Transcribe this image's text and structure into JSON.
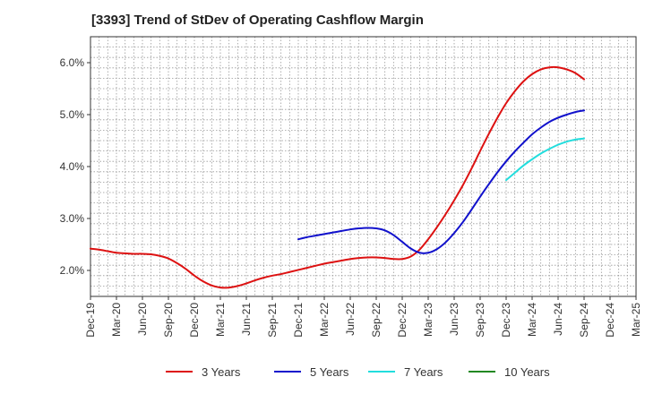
{
  "chart_data": {
    "type": "line",
    "title": "[3393]  Trend of StDev of Operating Cashflow Margin",
    "xlabel": "",
    "ylabel": "",
    "x_ticks": [
      "Dec-19",
      "Mar-20",
      "Jun-20",
      "Sep-20",
      "Dec-20",
      "Mar-21",
      "Jun-21",
      "Sep-21",
      "Dec-21",
      "Mar-22",
      "Jun-22",
      "Sep-22",
      "Dec-22",
      "Mar-23",
      "Jun-23",
      "Sep-23",
      "Dec-23",
      "Mar-24",
      "Jun-24",
      "Sep-24",
      "Dec-24",
      "Mar-25"
    ],
    "y_ticks": [
      "2.0%",
      "3.0%",
      "4.0%",
      "5.0%",
      "6.0%"
    ],
    "y_tick_values": [
      2.0,
      3.0,
      4.0,
      5.0,
      6.0
    ],
    "ylim": [
      1.5,
      6.5
    ],
    "grid": true,
    "legend_position": "bottom",
    "series": [
      {
        "name": "3 Years",
        "color": "#dd1111",
        "x": [
          "Dec-19",
          "Jan-20",
          "Feb-20",
          "Mar-20",
          "Apr-20",
          "May-20",
          "Jun-20",
          "Jul-20",
          "Aug-20",
          "Sep-20",
          "Oct-20",
          "Nov-20",
          "Dec-20",
          "Jan-21",
          "Feb-21",
          "Mar-21",
          "Apr-21",
          "May-21",
          "Jun-21",
          "Jul-21",
          "Aug-21",
          "Sep-21",
          "Oct-21",
          "Nov-21",
          "Dec-21",
          "Jan-22",
          "Feb-22",
          "Mar-22",
          "Apr-22",
          "May-22",
          "Jun-22",
          "Jul-22",
          "Aug-22",
          "Sep-22",
          "Oct-22",
          "Nov-22",
          "Dec-22",
          "Jan-23",
          "Feb-23",
          "Mar-23",
          "Apr-23",
          "May-23",
          "Jun-23",
          "Jul-23",
          "Aug-23",
          "Sep-23",
          "Oct-23",
          "Nov-23",
          "Dec-23",
          "Jan-24",
          "Feb-24",
          "Mar-24",
          "Apr-24",
          "May-24",
          "Jun-24",
          "Jul-24",
          "Aug-24",
          "Sep-24"
        ],
        "values": [
          2.42,
          2.4,
          2.37,
          2.34,
          2.33,
          2.32,
          2.32,
          2.31,
          2.28,
          2.23,
          2.14,
          2.03,
          1.9,
          1.79,
          1.71,
          1.67,
          1.67,
          1.7,
          1.75,
          1.81,
          1.86,
          1.9,
          1.93,
          1.97,
          2.01,
          2.05,
          2.09,
          2.13,
          2.16,
          2.19,
          2.22,
          2.24,
          2.25,
          2.25,
          2.24,
          2.22,
          2.22,
          2.27,
          2.4,
          2.6,
          2.83,
          3.08,
          3.35,
          3.64,
          3.96,
          4.3,
          4.63,
          4.94,
          5.22,
          5.45,
          5.64,
          5.78,
          5.87,
          5.91,
          5.91,
          5.87,
          5.8,
          5.68
        ]
      },
      {
        "name": "5 Years",
        "color": "#1111cc",
        "x": [
          "Dec-21",
          "Jan-22",
          "Feb-22",
          "Mar-22",
          "Apr-22",
          "May-22",
          "Jun-22",
          "Jul-22",
          "Aug-22",
          "Sep-22",
          "Oct-22",
          "Nov-22",
          "Dec-22",
          "Jan-23",
          "Feb-23",
          "Mar-23",
          "Apr-23",
          "May-23",
          "Jun-23",
          "Jul-23",
          "Aug-23",
          "Sep-23",
          "Oct-23",
          "Nov-23",
          "Dec-23",
          "Jan-24",
          "Feb-24",
          "Mar-24",
          "Apr-24",
          "May-24",
          "Jun-24",
          "Jul-24",
          "Aug-24",
          "Sep-24"
        ],
        "values": [
          2.6,
          2.64,
          2.67,
          2.7,
          2.73,
          2.76,
          2.79,
          2.81,
          2.82,
          2.81,
          2.77,
          2.68,
          2.55,
          2.42,
          2.34,
          2.34,
          2.41,
          2.54,
          2.72,
          2.93,
          3.17,
          3.42,
          3.66,
          3.89,
          4.1,
          4.29,
          4.46,
          4.62,
          4.75,
          4.86,
          4.94,
          5.0,
          5.05,
          5.08
        ]
      },
      {
        "name": "7 Years",
        "color": "#22dddd",
        "x": [
          "Dec-23",
          "Jan-24",
          "Feb-24",
          "Mar-24",
          "Apr-24",
          "May-24",
          "Jun-24",
          "Jul-24",
          "Aug-24",
          "Sep-24"
        ],
        "values": [
          3.74,
          3.88,
          4.02,
          4.14,
          4.25,
          4.34,
          4.42,
          4.48,
          4.52,
          4.54
        ]
      },
      {
        "name": "10 Years",
        "color": "#228822",
        "x": [],
        "values": []
      }
    ]
  }
}
